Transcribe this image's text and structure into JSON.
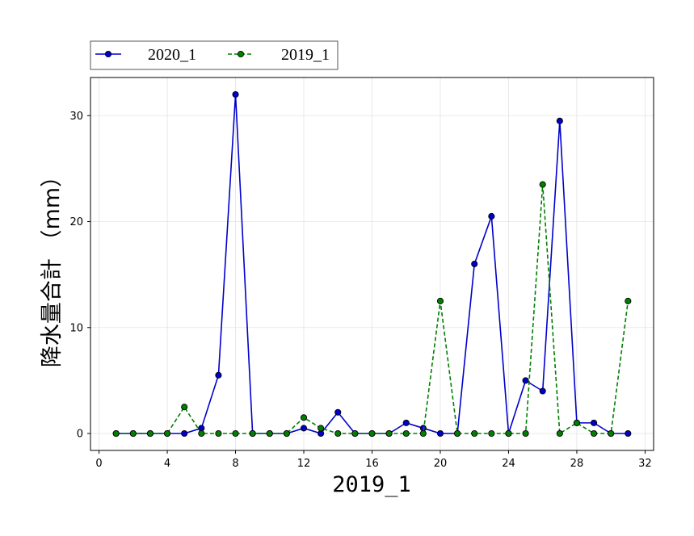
{
  "chart_data": {
    "type": "line",
    "title": "",
    "xlabel": "2019_1",
    "ylabel": "降水量合計 （mm）",
    "xlim": [
      -0.5,
      32.5
    ],
    "ylim": [
      -1.6,
      33.6
    ],
    "x_ticks": [
      0,
      4,
      8,
      12,
      16,
      20,
      24,
      28,
      32
    ],
    "y_ticks": [
      0,
      10,
      20,
      30
    ],
    "grid": true,
    "legend_placement": "top-left, above plot",
    "x": [
      1,
      2,
      3,
      4,
      5,
      6,
      7,
      8,
      9,
      10,
      11,
      12,
      13,
      14,
      15,
      16,
      17,
      18,
      19,
      20,
      21,
      22,
      23,
      24,
      25,
      26,
      27,
      28,
      29,
      30,
      31
    ],
    "series": [
      {
        "name": "2020_1",
        "color": "#0000cc",
        "marker_fill": "#0000cc",
        "line_style": "solid",
        "values": [
          0,
          0,
          0,
          0,
          0,
          0.5,
          5.5,
          32,
          0,
          0,
          0,
          0.5,
          0,
          2,
          0,
          0,
          0,
          1,
          0.5,
          0,
          0,
          16,
          20.5,
          0,
          5,
          4,
          29.5,
          1,
          1,
          0,
          0
        ]
      },
      {
        "name": "2019_1",
        "color": "#008000",
        "marker_fill": "#008000",
        "line_style": "dashed",
        "values": [
          0,
          0,
          0,
          0,
          2.5,
          0,
          0,
          0,
          0,
          0,
          0,
          1.5,
          0.5,
          0,
          0,
          0,
          0,
          0,
          0,
          12.5,
          0,
          0,
          0,
          0,
          0,
          23.5,
          0,
          1,
          0,
          0,
          12.5
        ]
      }
    ]
  }
}
